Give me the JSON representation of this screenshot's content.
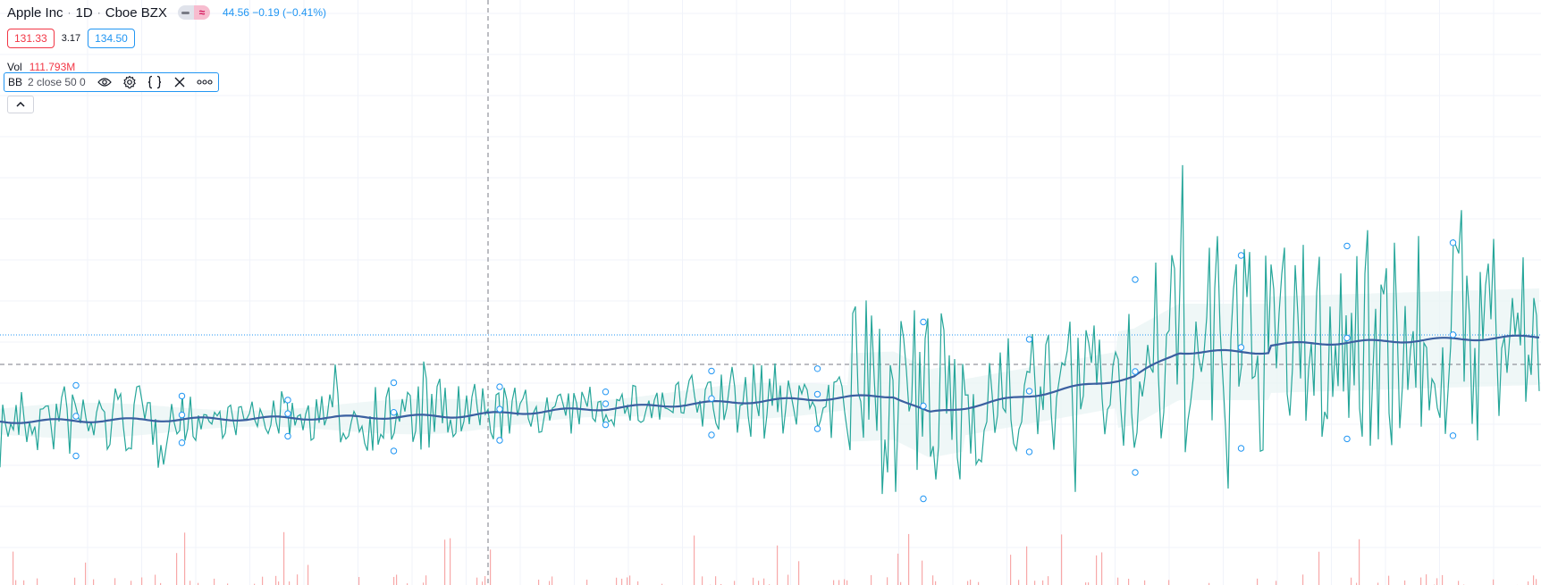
{
  "legend": {
    "symbol": "Apple Inc",
    "interval": "1D",
    "exchange": "Cboe BZX",
    "change": "44.56 −0.19 (−0.41%)",
    "bid": "131.33",
    "spread": "3.17",
    "ask": "134.50"
  },
  "volume": {
    "label": "Vol",
    "value": "111.793M"
  },
  "indicator": {
    "name": "BB",
    "params": "2 close 50 0",
    "icons": [
      "eye-icon",
      "gear-icon",
      "source-code-icon",
      "close-icon",
      "more-icon"
    ]
  },
  "colors": {
    "price_line": "#26a69a",
    "basis_line": "#3a5fa0",
    "band_fill": "#e8f4f4",
    "volume_bar": "#f7a8a8",
    "accent": "#2196f3",
    "down": "#f23645",
    "grid": "#f0f3fa"
  },
  "chart_data": {
    "type": "line",
    "series": [
      {
        "values_description_free": true
      }
    ]
  }
}
